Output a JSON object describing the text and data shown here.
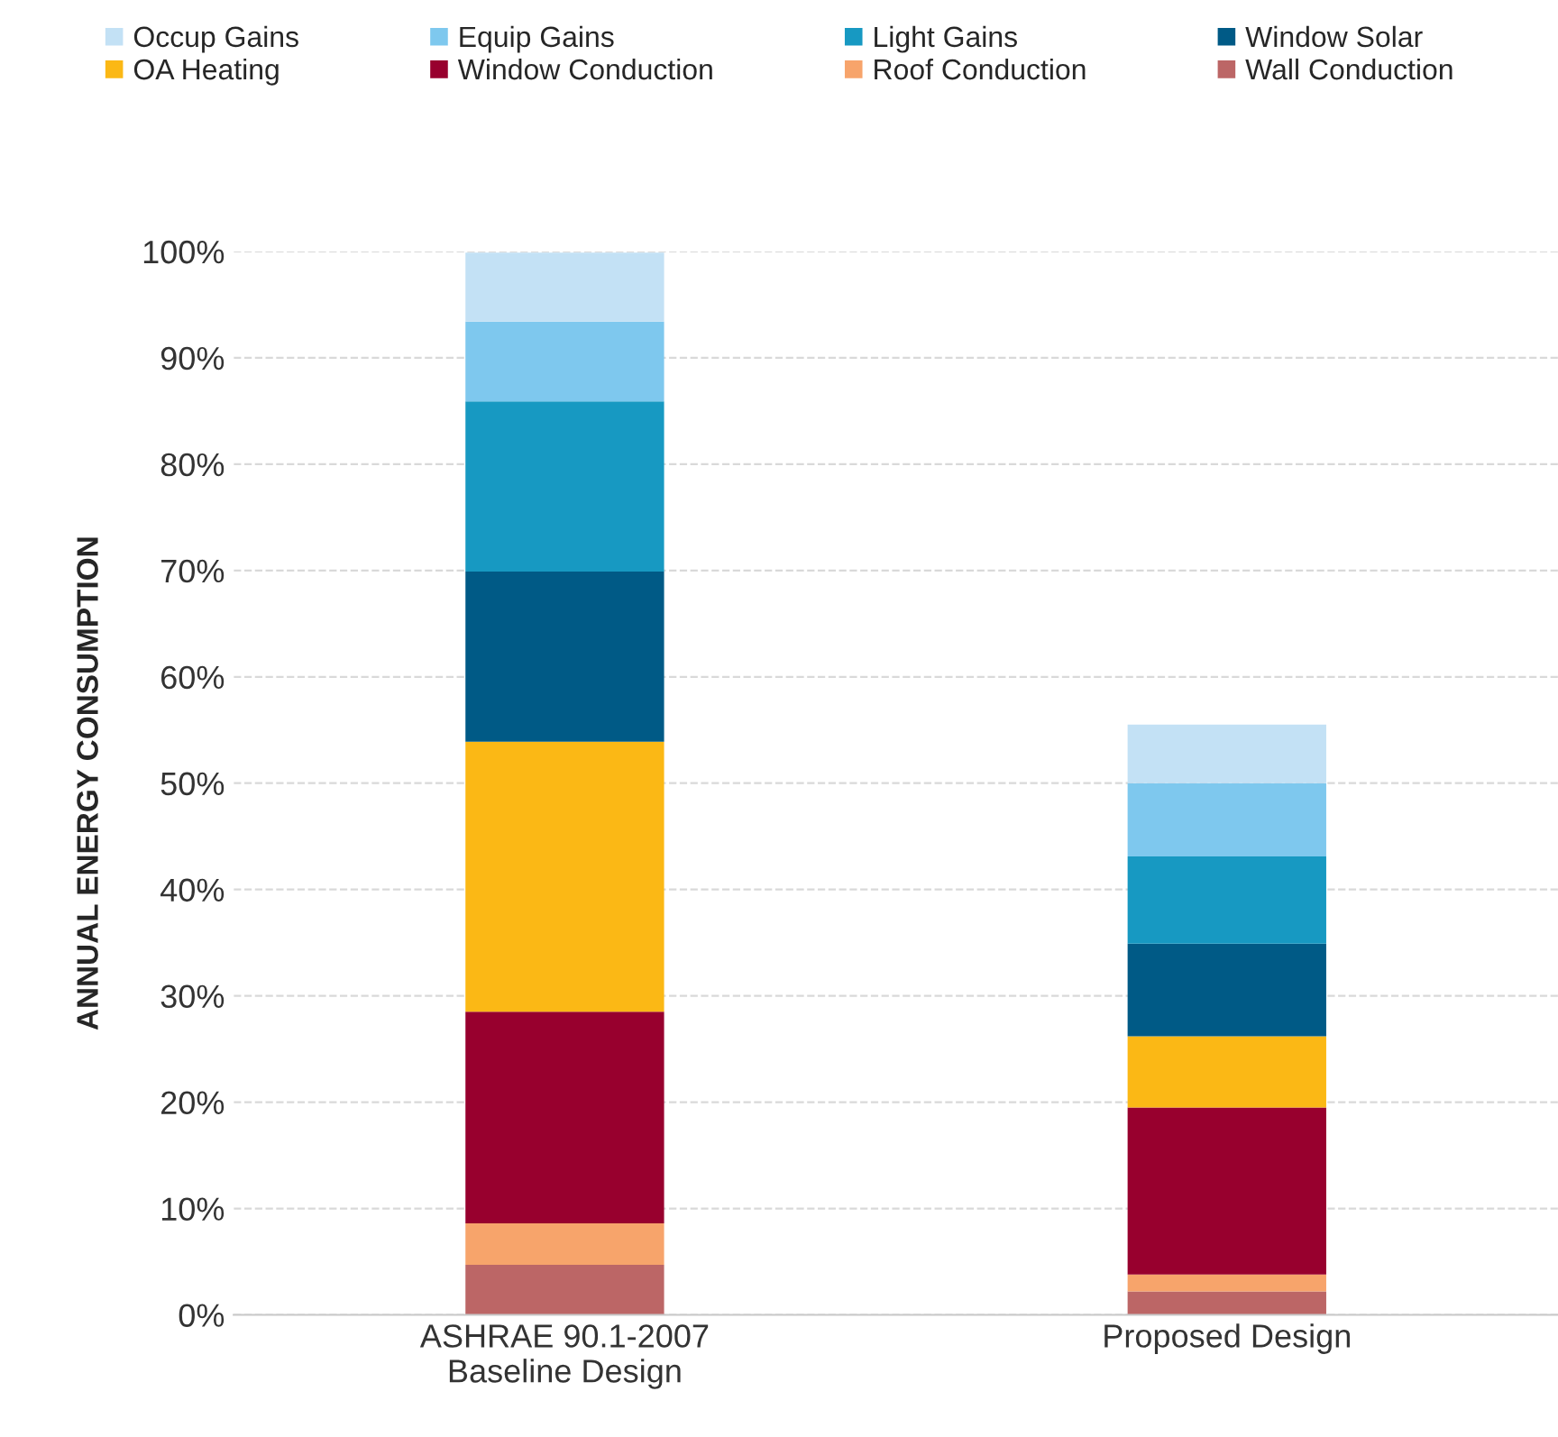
{
  "chart_data": {
    "type": "bar",
    "stacked": true,
    "ylabel": "ANNUAL ENERGY CONSUMPTION",
    "categories": [
      "ASHRAE 90.1-2007\nBaseline Design",
      "Proposed Design"
    ],
    "series": [
      {
        "name": "Wall Conduction",
        "color": "#bc6666",
        "values": [
          4.7,
          2.2
        ]
      },
      {
        "name": "Roof Conduction",
        "color": "#f7a46b",
        "values": [
          3.9,
          1.6
        ]
      },
      {
        "name": "Window Conduction",
        "color": "#98002e",
        "values": [
          19.9,
          15.7
        ]
      },
      {
        "name": "OA Heating",
        "color": "#fbb815",
        "values": [
          25.4,
          6.7
        ]
      },
      {
        "name": "Window Solar",
        "color": "#005a86",
        "values": [
          16.0,
          8.7
        ]
      },
      {
        "name": "Light Gains",
        "color": "#1799c2",
        "values": [
          16.0,
          8.2
        ]
      },
      {
        "name": "Equip Gains",
        "color": "#7ec8ee",
        "values": [
          7.5,
          6.9
        ]
      },
      {
        "name": "Occup Gains",
        "color": "#c3e1f5",
        "values": [
          6.5,
          5.5
        ]
      }
    ],
    "ylim": [
      0,
      100
    ],
    "yticks": [
      {
        "value": 0,
        "label": "0%"
      },
      {
        "value": 10,
        "label": "10%"
      },
      {
        "value": 20,
        "label": "20%"
      },
      {
        "value": 30,
        "label": "30%"
      },
      {
        "value": 40,
        "label": "40%"
      },
      {
        "value": 50,
        "label": "50%"
      },
      {
        "value": 60,
        "label": "60%"
      },
      {
        "value": 70,
        "label": "70%"
      },
      {
        "value": 80,
        "label": "80%"
      },
      {
        "value": 90,
        "label": "90%"
      },
      {
        "value": 100,
        "label": "100%"
      }
    ],
    "grid": "y",
    "legend": "top"
  }
}
